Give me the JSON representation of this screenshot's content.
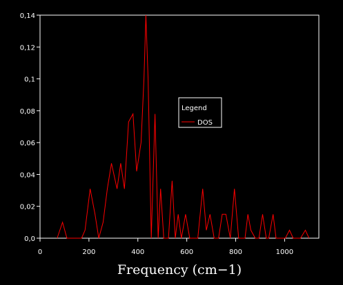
{
  "chart_data": {
    "type": "line",
    "title": "",
    "xlabel": "Frequency (cm−1)",
    "ylabel": "",
    "xlim": [
      0,
      1140
    ],
    "ylim": [
      0,
      0.14
    ],
    "x_ticks": [
      0,
      200,
      400,
      600,
      800,
      1000
    ],
    "x_tick_labels": [
      "0",
      "200",
      "400",
      "600",
      "800",
      "1000"
    ],
    "y_ticks": [
      0,
      0.02,
      0.04,
      0.06,
      0.08,
      0.1,
      0.12,
      0.14
    ],
    "y_tick_labels": [
      "0,0",
      "0,02",
      "0,04",
      "0,06",
      "0,08",
      "0,1",
      "0,12",
      "0,14"
    ],
    "grid": false,
    "legend": {
      "title": "Legend",
      "placement": "center-right"
    },
    "colors": {
      "background": "#000000",
      "axes": "#ffffff",
      "line": "#ff0000"
    },
    "series": [
      {
        "name": "DOS",
        "x": [
          70,
          92,
          110,
          170,
          184,
          205,
          225,
          240,
          258,
          275,
          292,
          315,
          330,
          345,
          362,
          380,
          395,
          413,
          425,
          433,
          442,
          455,
          470,
          483,
          493,
          506,
          525,
          540,
          553,
          565,
          578,
          595,
          612,
          628,
          645,
          665,
          680,
          695,
          712,
          730,
          745,
          760,
          778,
          795,
          812,
          825,
          838,
          850,
          862,
          880,
          895,
          910,
          925,
          935,
          953,
          965,
          975,
          990,
          1003,
          1020,
          1035,
          1065,
          1085,
          1100
        ],
        "y": [
          0,
          0.01,
          0,
          0,
          0.005,
          0.031,
          0.015,
          0,
          0.01,
          0.031,
          0.047,
          0.031,
          0.047,
          0.031,
          0.073,
          0.078,
          0.042,
          0.06,
          0.1,
          0.14,
          0.1,
          0,
          0.078,
          0,
          0.031,
          0,
          0,
          0.036,
          0,
          0.015,
          0,
          0.015,
          0,
          0,
          0,
          0.031,
          0.005,
          0.015,
          0,
          0,
          0.015,
          0.015,
          0,
          0.031,
          0,
          0,
          0,
          0.015,
          0.005,
          0,
          0,
          0.015,
          0,
          0,
          0.015,
          0,
          0,
          0,
          0,
          0.005,
          0,
          0,
          0.005,
          0
        ]
      }
    ]
  }
}
